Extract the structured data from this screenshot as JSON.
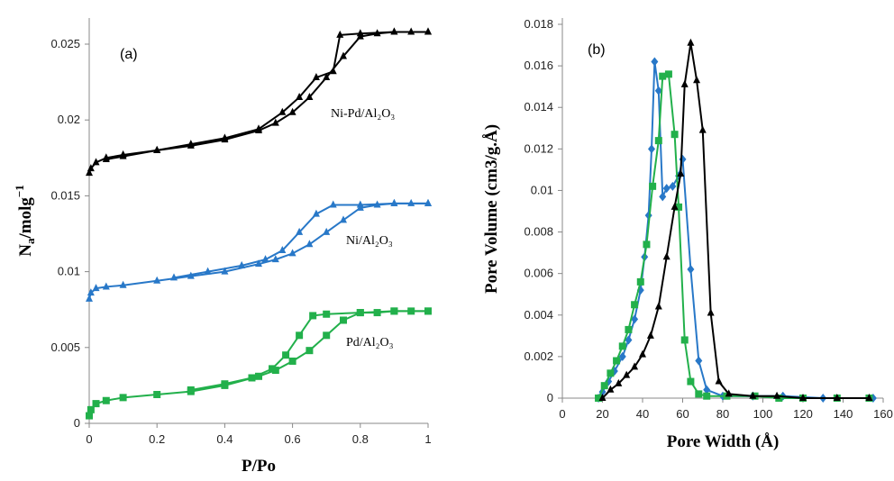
{
  "chart_data": [
    {
      "type": "line",
      "panel_label": "(a)",
      "xlabel": "P/Po",
      "ylabel": "Na/molg−1",
      "ylabel_main": "N",
      "ylabel_sub": "a",
      "ylabel_rest": "/molg",
      "ylabel_sup": "−1",
      "xlim": [
        0,
        1
      ],
      "ylim": [
        0,
        0.025
      ],
      "xticks": [
        "0",
        "0.2",
        "0.4",
        "0.6",
        "0.8",
        "1"
      ],
      "yticks": [
        "0",
        "0.005",
        "0.01",
        "0.015",
        "0.02",
        "0.025"
      ],
      "series": [
        {
          "name": "Ni-Pd/Al₂O₃",
          "label_text": "Ni-Pd/Al₂O₃",
          "color": "#000000",
          "marker": "triangle",
          "adsorption": [
            [
              0,
              0.0165
            ],
            [
              0.005,
              0.0168
            ],
            [
              0.02,
              0.0172
            ],
            [
              0.05,
              0.0175
            ],
            [
              0.1,
              0.0177
            ],
            [
              0.2,
              0.018
            ],
            [
              0.3,
              0.0183
            ],
            [
              0.4,
              0.0187
            ],
            [
              0.5,
              0.0193
            ],
            [
              0.55,
              0.0198
            ],
            [
              0.6,
              0.0205
            ],
            [
              0.65,
              0.0215
            ],
            [
              0.7,
              0.0228
            ],
            [
              0.75,
              0.0242
            ],
            [
              0.8,
              0.0255
            ],
            [
              0.85,
              0.0257
            ],
            [
              0.9,
              0.0258
            ],
            [
              0.95,
              0.0258
            ],
            [
              1.0,
              0.0258
            ]
          ],
          "desorption": [
            [
              1.0,
              0.0258
            ],
            [
              0.9,
              0.0258
            ],
            [
              0.8,
              0.0257
            ],
            [
              0.74,
              0.0256
            ],
            [
              0.72,
              0.0232
            ],
            [
              0.67,
              0.0228
            ],
            [
              0.62,
              0.0215
            ],
            [
              0.57,
              0.0205
            ],
            [
              0.5,
              0.0194
            ],
            [
              0.4,
              0.0188
            ],
            [
              0.3,
              0.0184
            ],
            [
              0.2,
              0.018
            ],
            [
              0.1,
              0.0176
            ],
            [
              0.05,
              0.0174
            ]
          ]
        },
        {
          "name": "Ni/Al₂O₃",
          "label_text": "Ni/Al₂O₃",
          "color": "#2878c8",
          "marker": "triangle",
          "adsorption": [
            [
              0,
              0.0082
            ],
            [
              0.005,
              0.0086
            ],
            [
              0.02,
              0.0089
            ],
            [
              0.05,
              0.009
            ],
            [
              0.1,
              0.0091
            ],
            [
              0.2,
              0.0094
            ],
            [
              0.3,
              0.0097
            ],
            [
              0.4,
              0.01
            ],
            [
              0.5,
              0.0105
            ],
            [
              0.55,
              0.0108
            ],
            [
              0.6,
              0.0112
            ],
            [
              0.65,
              0.0118
            ],
            [
              0.7,
              0.0126
            ],
            [
              0.75,
              0.0134
            ],
            [
              0.8,
              0.0142
            ],
            [
              0.85,
              0.0144
            ],
            [
              0.9,
              0.0145
            ],
            [
              0.95,
              0.0145
            ],
            [
              1.0,
              0.0145
            ]
          ],
          "desorption": [
            [
              1.0,
              0.0145
            ],
            [
              0.9,
              0.0145
            ],
            [
              0.8,
              0.0144
            ],
            [
              0.72,
              0.0144
            ],
            [
              0.67,
              0.0138
            ],
            [
              0.62,
              0.0126
            ],
            [
              0.57,
              0.0114
            ],
            [
              0.52,
              0.0108
            ],
            [
              0.45,
              0.0104
            ],
            [
              0.35,
              0.01
            ],
            [
              0.25,
              0.0096
            ]
          ]
        },
        {
          "name": "Pd/Al₂O₃",
          "label_text": "Pd/Al₂O₃",
          "color": "#22b04b",
          "marker": "square",
          "adsorption": [
            [
              0,
              0.0005
            ],
            [
              0.005,
              0.0009
            ],
            [
              0.02,
              0.0013
            ],
            [
              0.05,
              0.0015
            ],
            [
              0.1,
              0.0017
            ],
            [
              0.2,
              0.0019
            ],
            [
              0.3,
              0.0021
            ],
            [
              0.4,
              0.0025
            ],
            [
              0.5,
              0.0031
            ],
            [
              0.55,
              0.0035
            ],
            [
              0.6,
              0.0041
            ],
            [
              0.65,
              0.0048
            ],
            [
              0.7,
              0.0058
            ],
            [
              0.75,
              0.0068
            ],
            [
              0.8,
              0.0073
            ],
            [
              0.85,
              0.0073
            ],
            [
              0.9,
              0.0074
            ],
            [
              0.95,
              0.0074
            ],
            [
              1.0,
              0.0074
            ]
          ],
          "desorption": [
            [
              1.0,
              0.0074
            ],
            [
              0.9,
              0.0074
            ],
            [
              0.8,
              0.0073
            ],
            [
              0.7,
              0.0072
            ],
            [
              0.66,
              0.0071
            ],
            [
              0.62,
              0.0058
            ],
            [
              0.58,
              0.0045
            ],
            [
              0.54,
              0.0036
            ],
            [
              0.48,
              0.003
            ],
            [
              0.4,
              0.0026
            ],
            [
              0.3,
              0.0022
            ]
          ]
        }
      ]
    },
    {
      "type": "line",
      "panel_label": "(b)",
      "xlabel": "Pore Width  (Å)",
      "ylabel": "Pore Volume  (cm3/g.Å)",
      "xlim": [
        0,
        160
      ],
      "ylim": [
        0,
        0.018
      ],
      "xticks": [
        "0",
        "20",
        "40",
        "60",
        "80",
        "100",
        "120",
        "140",
        "160"
      ],
      "yticks": [
        "0",
        "0.002",
        "0.004",
        "0.006",
        "0.008",
        "0.01",
        "0.012",
        "0.014",
        "0.016",
        "0.018"
      ],
      "series": [
        {
          "color": "#2878c8",
          "marker": "diamond",
          "points": [
            [
              18,
              0
            ],
            [
              20,
              0.0003
            ],
            [
              23,
              0.0008
            ],
            [
              26,
              0.0013
            ],
            [
              30,
              0.002
            ],
            [
              33,
              0.0028
            ],
            [
              36,
              0.0038
            ],
            [
              39,
              0.0052
            ],
            [
              41,
              0.0068
            ],
            [
              43,
              0.0088
            ],
            [
              44.5,
              0.012
            ],
            [
              46,
              0.0162
            ],
            [
              48,
              0.0148
            ],
            [
              50,
              0.0097
            ],
            [
              52,
              0.0101
            ],
            [
              55,
              0.0102
            ],
            [
              58,
              0.0107
            ],
            [
              60,
              0.0115
            ],
            [
              64,
              0.0062
            ],
            [
              68,
              0.0018
            ],
            [
              72,
              0.0004
            ],
            [
              80,
              0.0001
            ],
            [
              95,
              0.0001
            ],
            [
              110,
              0.0001
            ],
            [
              130,
              0
            ],
            [
              155,
              0
            ]
          ]
        },
        {
          "color": "#22b04b",
          "marker": "square",
          "points": [
            [
              18,
              0
            ],
            [
              21,
              0.0006
            ],
            [
              24,
              0.0012
            ],
            [
              27,
              0.0018
            ],
            [
              30,
              0.0025
            ],
            [
              33,
              0.0033
            ],
            [
              36,
              0.0045
            ],
            [
              39,
              0.0056
            ],
            [
              42,
              0.0074
            ],
            [
              45,
              0.0102
            ],
            [
              48,
              0.0124
            ],
            [
              50,
              0.0155
            ],
            [
              53,
              0.0156
            ],
            [
              56,
              0.0127
            ],
            [
              58,
              0.0092
            ],
            [
              61,
              0.0028
            ],
            [
              64,
              0.0008
            ],
            [
              68,
              0.0002
            ],
            [
              72,
              0.0001
            ],
            [
              82,
              0.0001
            ],
            [
              96,
              0.0001
            ],
            [
              108,
              0
            ],
            [
              120,
              0
            ],
            [
              137,
              0
            ],
            [
              153,
              0
            ]
          ]
        },
        {
          "color": "#000000",
          "marker": "triangle",
          "points": [
            [
              20,
              0
            ],
            [
              24,
              0.0004
            ],
            [
              28,
              0.0007
            ],
            [
              32,
              0.0011
            ],
            [
              36,
              0.0015
            ],
            [
              40,
              0.0021
            ],
            [
              44,
              0.003
            ],
            [
              48,
              0.0044
            ],
            [
              52,
              0.0068
            ],
            [
              56,
              0.0092
            ],
            [
              59,
              0.0108
            ],
            [
              61,
              0.0151
            ],
            [
              64,
              0.0171
            ],
            [
              67,
              0.0153
            ],
            [
              70,
              0.0129
            ],
            [
              74,
              0.0041
            ],
            [
              78,
              0.0008
            ],
            [
              83,
              0.0002
            ],
            [
              95,
              0.0001
            ],
            [
              107,
              0.0001
            ],
            [
              120,
              0
            ],
            [
              137,
              0
            ],
            [
              153,
              0
            ]
          ]
        }
      ]
    }
  ]
}
